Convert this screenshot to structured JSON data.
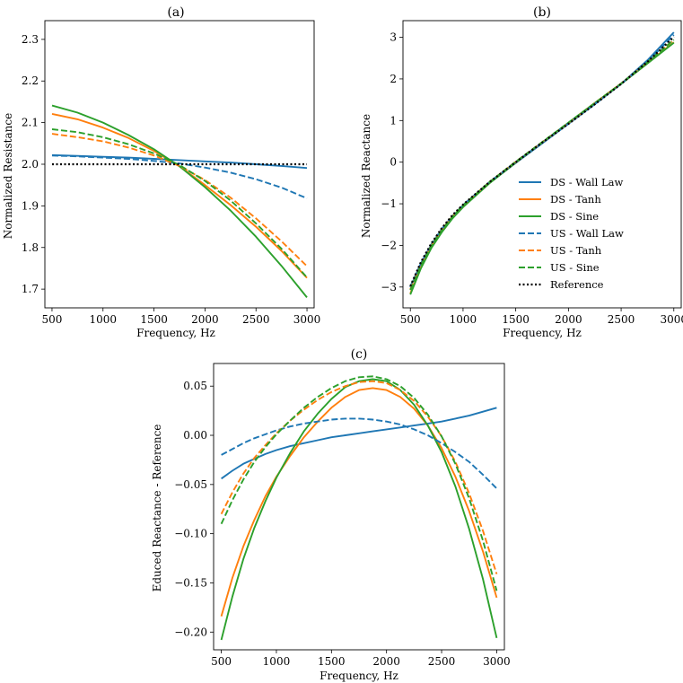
{
  "chart_data": [
    {
      "panel": "(a)",
      "type": "line",
      "title": "(a)",
      "xlabel": "Frequency, Hz",
      "ylabel": "Normalized Resistance",
      "xlim": [
        430,
        3070
      ],
      "ylim": [
        1.655,
        2.345
      ],
      "xticks": [
        500,
        1000,
        1500,
        2000,
        2500,
        3000
      ],
      "yticks": [
        1.7,
        1.8,
        1.9,
        2.0,
        2.1,
        2.2,
        2.3
      ],
      "ytick_labels": [
        "1.7",
        "1.8",
        "1.9",
        "2.0",
        "2.1",
        "2.2",
        "2.3"
      ],
      "grid": false,
      "x": [
        500,
        750,
        1000,
        1250,
        1500,
        1750,
        2000,
        2250,
        2500,
        2750,
        3000
      ],
      "series": [
        {
          "name": "DS - Wall Law",
          "color": "#1f77b4",
          "dash": "solid",
          "values": [
            2.022,
            2.02,
            2.018,
            2.016,
            2.013,
            2.01,
            2.007,
            2.004,
            2.0,
            1.996,
            1.991
          ]
        },
        {
          "name": "DS - Tanh",
          "color": "#ff7f0e",
          "dash": "solid",
          "values": [
            2.121,
            2.108,
            2.088,
            2.063,
            2.032,
            1.995,
            1.95,
            1.902,
            1.85,
            1.792,
            1.727
          ]
        },
        {
          "name": "DS - Sine",
          "color": "#2ca02c",
          "dash": "solid",
          "values": [
            2.141,
            2.124,
            2.1,
            2.07,
            2.036,
            1.995,
            1.945,
            1.889,
            1.826,
            1.756,
            1.68
          ]
        },
        {
          "name": "US - Wall Law",
          "color": "#1f77b4",
          "dash": "dashed",
          "values": [
            2.021,
            2.019,
            2.016,
            2.013,
            2.008,
            2.002,
            1.992,
            1.98,
            1.964,
            1.944,
            1.918
          ]
        },
        {
          "name": "US - Tanh",
          "color": "#ff7f0e",
          "dash": "dashed",
          "values": [
            2.073,
            2.065,
            2.055,
            2.04,
            2.021,
            1.996,
            1.962,
            1.92,
            1.87,
            1.815,
            1.755
          ]
        },
        {
          "name": "US - Sine",
          "color": "#2ca02c",
          "dash": "dashed",
          "values": [
            2.084,
            2.077,
            2.065,
            2.048,
            2.026,
            1.998,
            1.96,
            1.913,
            1.858,
            1.797,
            1.728
          ]
        },
        {
          "name": "Reference",
          "color": "#000000",
          "dash": "dotted",
          "values": [
            2.0,
            2.0,
            2.0,
            2.0,
            2.0,
            2.0,
            2.0,
            2.0,
            2.0,
            2.0,
            2.0
          ]
        }
      ]
    },
    {
      "panel": "(b)",
      "type": "line",
      "title": "(b)",
      "xlabel": "Frequency, Hz",
      "ylabel": "Normalized Reactance",
      "xlim": [
        430,
        3070
      ],
      "ylim": [
        -3.5,
        3.4
      ],
      "xticks": [
        500,
        1000,
        1500,
        2000,
        2500,
        3000
      ],
      "yticks": [
        -3,
        -2,
        -1,
        0,
        1,
        2,
        3
      ],
      "ytick_labels": [
        "−3",
        "−2",
        "−1",
        "0",
        "1",
        "2",
        "3"
      ],
      "grid": false,
      "legend": {
        "placement": "right"
      },
      "x": [
        500,
        600,
        700,
        800,
        900,
        1000,
        1250,
        1500,
        1750,
        2000,
        2250,
        2500,
        2750,
        3000
      ],
      "series": [
        {
          "name": "DS - Wall Law",
          "color": "#1f77b4",
          "dash": "solid",
          "values": [
            -3.01,
            -2.43,
            -1.98,
            -1.62,
            -1.31,
            -1.05,
            -0.5,
            -0.02,
            0.45,
            0.92,
            1.39,
            1.88,
            2.45,
            3.12
          ]
        },
        {
          "name": "DS - Tanh",
          "color": "#ff7f0e",
          "dash": "solid",
          "values": [
            -3.15,
            -2.52,
            -2.04,
            -1.66,
            -1.33,
            -1.06,
            -0.5,
            -0.01,
            0.47,
            0.94,
            1.42,
            1.89,
            2.38,
            2.88
          ]
        },
        {
          "name": "DS - Sine",
          "color": "#2ca02c",
          "dash": "solid",
          "values": [
            -3.18,
            -2.55,
            -2.06,
            -1.68,
            -1.35,
            -1.08,
            -0.51,
            -0.01,
            0.47,
            0.95,
            1.42,
            1.88,
            2.37,
            2.87
          ]
        },
        {
          "name": "US - Wall Law",
          "color": "#1f77b4",
          "dash": "dashed",
          "values": [
            -2.99,
            -2.43,
            -1.97,
            -1.6,
            -1.29,
            -1.03,
            -0.48,
            0.0,
            0.47,
            0.93,
            1.4,
            1.88,
            2.41,
            3.06
          ]
        },
        {
          "name": "US - Tanh",
          "color": "#ff7f0e",
          "dash": "dashed",
          "values": [
            -3.05,
            -2.47,
            -2.0,
            -1.62,
            -1.3,
            -1.04,
            -0.48,
            0.01,
            0.48,
            0.94,
            1.42,
            1.89,
            2.4,
            2.94
          ]
        },
        {
          "name": "US - Sine",
          "color": "#2ca02c",
          "dash": "dashed",
          "values": [
            -3.07,
            -2.48,
            -2.01,
            -1.63,
            -1.31,
            -1.04,
            -0.48,
            0.01,
            0.48,
            0.95,
            1.42,
            1.89,
            2.4,
            2.94
          ]
        },
        {
          "name": "Reference",
          "color": "#000000",
          "dash": "dotted",
          "values": [
            -2.98,
            -2.4,
            -1.95,
            -1.58,
            -1.27,
            -1.02,
            -0.48,
            0.0,
            0.47,
            0.92,
            1.39,
            1.88,
            2.41,
            3.01
          ]
        }
      ]
    },
    {
      "panel": "(c)",
      "type": "line",
      "title": "(c)",
      "xlabel": "Frequency, Hz",
      "ylabel": "Educed Reactance - Reference",
      "xlim": [
        430,
        3070
      ],
      "ylim": [
        -0.218,
        0.073
      ],
      "xticks": [
        500,
        1000,
        1500,
        2000,
        2500,
        3000
      ],
      "yticks": [
        -0.2,
        -0.15,
        -0.1,
        -0.05,
        0.0,
        0.05
      ],
      "ytick_labels": [
        "−0.20",
        "−0.15",
        "−0.10",
        "−0.05",
        "0.00",
        "0.05"
      ],
      "grid": false,
      "x": [
        500,
        600,
        700,
        800,
        900,
        1000,
        1125,
        1250,
        1375,
        1500,
        1625,
        1750,
        1875,
        2000,
        2125,
        2250,
        2375,
        2500,
        2625,
        2750,
        2875,
        3000
      ],
      "series": [
        {
          "name": "DS - Wall Law",
          "color": "#1f77b4",
          "dash": "solid",
          "values": [
            -0.044,
            -0.036,
            -0.029,
            -0.024,
            -0.019,
            -0.015,
            -0.011,
            -0.008,
            -0.005,
            -0.002,
            0.0,
            0.002,
            0.004,
            0.006,
            0.008,
            0.01,
            0.012,
            0.014,
            0.017,
            0.02,
            0.024,
            0.028
          ]
        },
        {
          "name": "DS - Tanh",
          "color": "#ff7f0e",
          "dash": "solid",
          "values": [
            -0.184,
            -0.145,
            -0.113,
            -0.086,
            -0.062,
            -0.042,
            -0.021,
            -0.002,
            0.014,
            0.028,
            0.039,
            0.046,
            0.048,
            0.046,
            0.039,
            0.027,
            0.01,
            -0.013,
            -0.042,
            -0.077,
            -0.118,
            -0.165
          ]
        },
        {
          "name": "DS - Sine",
          "color": "#2ca02c",
          "dash": "solid",
          "values": [
            -0.208,
            -0.164,
            -0.126,
            -0.094,
            -0.067,
            -0.043,
            -0.018,
            0.004,
            0.022,
            0.037,
            0.049,
            0.055,
            0.057,
            0.055,
            0.046,
            0.031,
            0.01,
            -0.017,
            -0.052,
            -0.095,
            -0.146,
            -0.206
          ]
        },
        {
          "name": "US - Wall Law",
          "color": "#1f77b4",
          "dash": "dashed",
          "values": [
            -0.02,
            -0.014,
            -0.008,
            -0.003,
            0.001,
            0.005,
            0.009,
            0.012,
            0.014,
            0.016,
            0.017,
            0.017,
            0.016,
            0.014,
            0.011,
            0.006,
            0.0,
            -0.008,
            -0.017,
            -0.027,
            -0.04,
            -0.054
          ]
        },
        {
          "name": "US - Tanh",
          "color": "#ff7f0e",
          "dash": "dashed",
          "values": [
            -0.08,
            -0.058,
            -0.039,
            -0.023,
            -0.01,
            0.002,
            0.015,
            0.026,
            0.036,
            0.044,
            0.05,
            0.054,
            0.055,
            0.053,
            0.046,
            0.035,
            0.019,
            -0.001,
            -0.027,
            -0.059,
            -0.097,
            -0.141
          ]
        },
        {
          "name": "US - Sine",
          "color": "#2ca02c",
          "dash": "dashed",
          "values": [
            -0.09,
            -0.066,
            -0.045,
            -0.027,
            -0.012,
            0.001,
            0.015,
            0.028,
            0.039,
            0.048,
            0.055,
            0.059,
            0.06,
            0.057,
            0.05,
            0.038,
            0.021,
            -0.001,
            -0.029,
            -0.064,
            -0.107,
            -0.158
          ]
        }
      ]
    }
  ],
  "legend": {
    "items": [
      {
        "label": "DS - Wall Law",
        "color": "#1f77b4",
        "dash": "solid"
      },
      {
        "label": "DS - Tanh",
        "color": "#ff7f0e",
        "dash": "solid"
      },
      {
        "label": "DS - Sine",
        "color": "#2ca02c",
        "dash": "solid"
      },
      {
        "label": "US - Wall Law",
        "color": "#1f77b4",
        "dash": "dashed"
      },
      {
        "label": "US - Tanh",
        "color": "#ff7f0e",
        "dash": "dashed"
      },
      {
        "label": "US - Sine",
        "color": "#2ca02c",
        "dash": "dashed"
      },
      {
        "label": "Reference",
        "color": "#000000",
        "dash": "dotted"
      }
    ]
  }
}
